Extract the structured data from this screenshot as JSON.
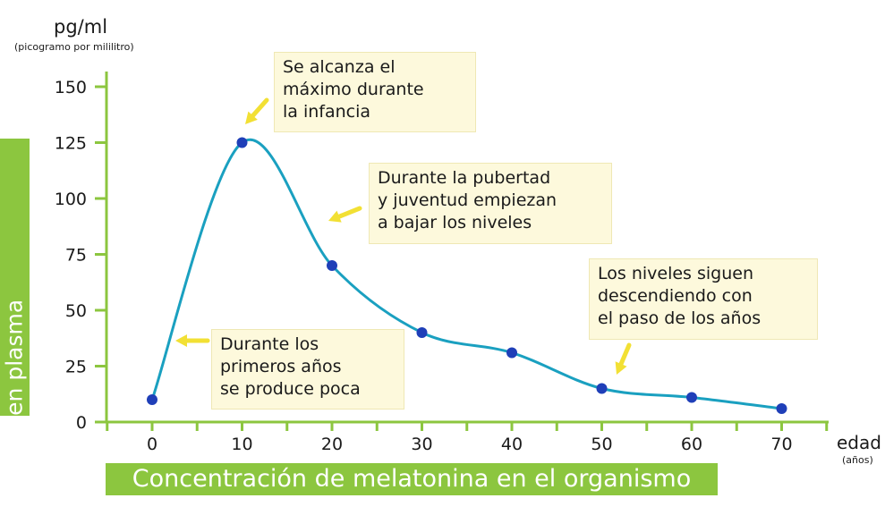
{
  "chart_data": {
    "type": "line",
    "title": "Concentración de melatonina en el organismo",
    "ylabel": "Melatonia en plasma",
    "yunit": "pg/ml",
    "yunit_detail": "(picogramo por mililitro)",
    "xlabel": "edad",
    "xunit_detail": "(años)",
    "x": [
      0,
      10,
      20,
      30,
      40,
      50,
      60,
      70
    ],
    "y": [
      10,
      125,
      70,
      40,
      31,
      15,
      11,
      6
    ],
    "xlim": [
      -5,
      75
    ],
    "ylim": [
      0,
      155
    ],
    "xticks": [
      "0",
      "10",
      "20",
      "30",
      "40",
      "50",
      "60",
      "70"
    ],
    "yticks": [
      "0",
      "25",
      "50",
      "75",
      "100",
      "125",
      "150"
    ],
    "annotations": [
      "Se alcanza el\nmáximo durante\nla infancia",
      "Durante la pubertad\ny juventud empiezan\na bajar los niveles",
      "Los niveles siguen\ndescendiendo con\nel paso de los años",
      "Durante los\nprimeros años\nse produce poca"
    ],
    "colors": {
      "line": "#1aa0c0",
      "points": "#1f3fb8",
      "axis": "#8cc63f",
      "arrow": "#f2e034",
      "note_bg": "#fdf9dc"
    }
  }
}
